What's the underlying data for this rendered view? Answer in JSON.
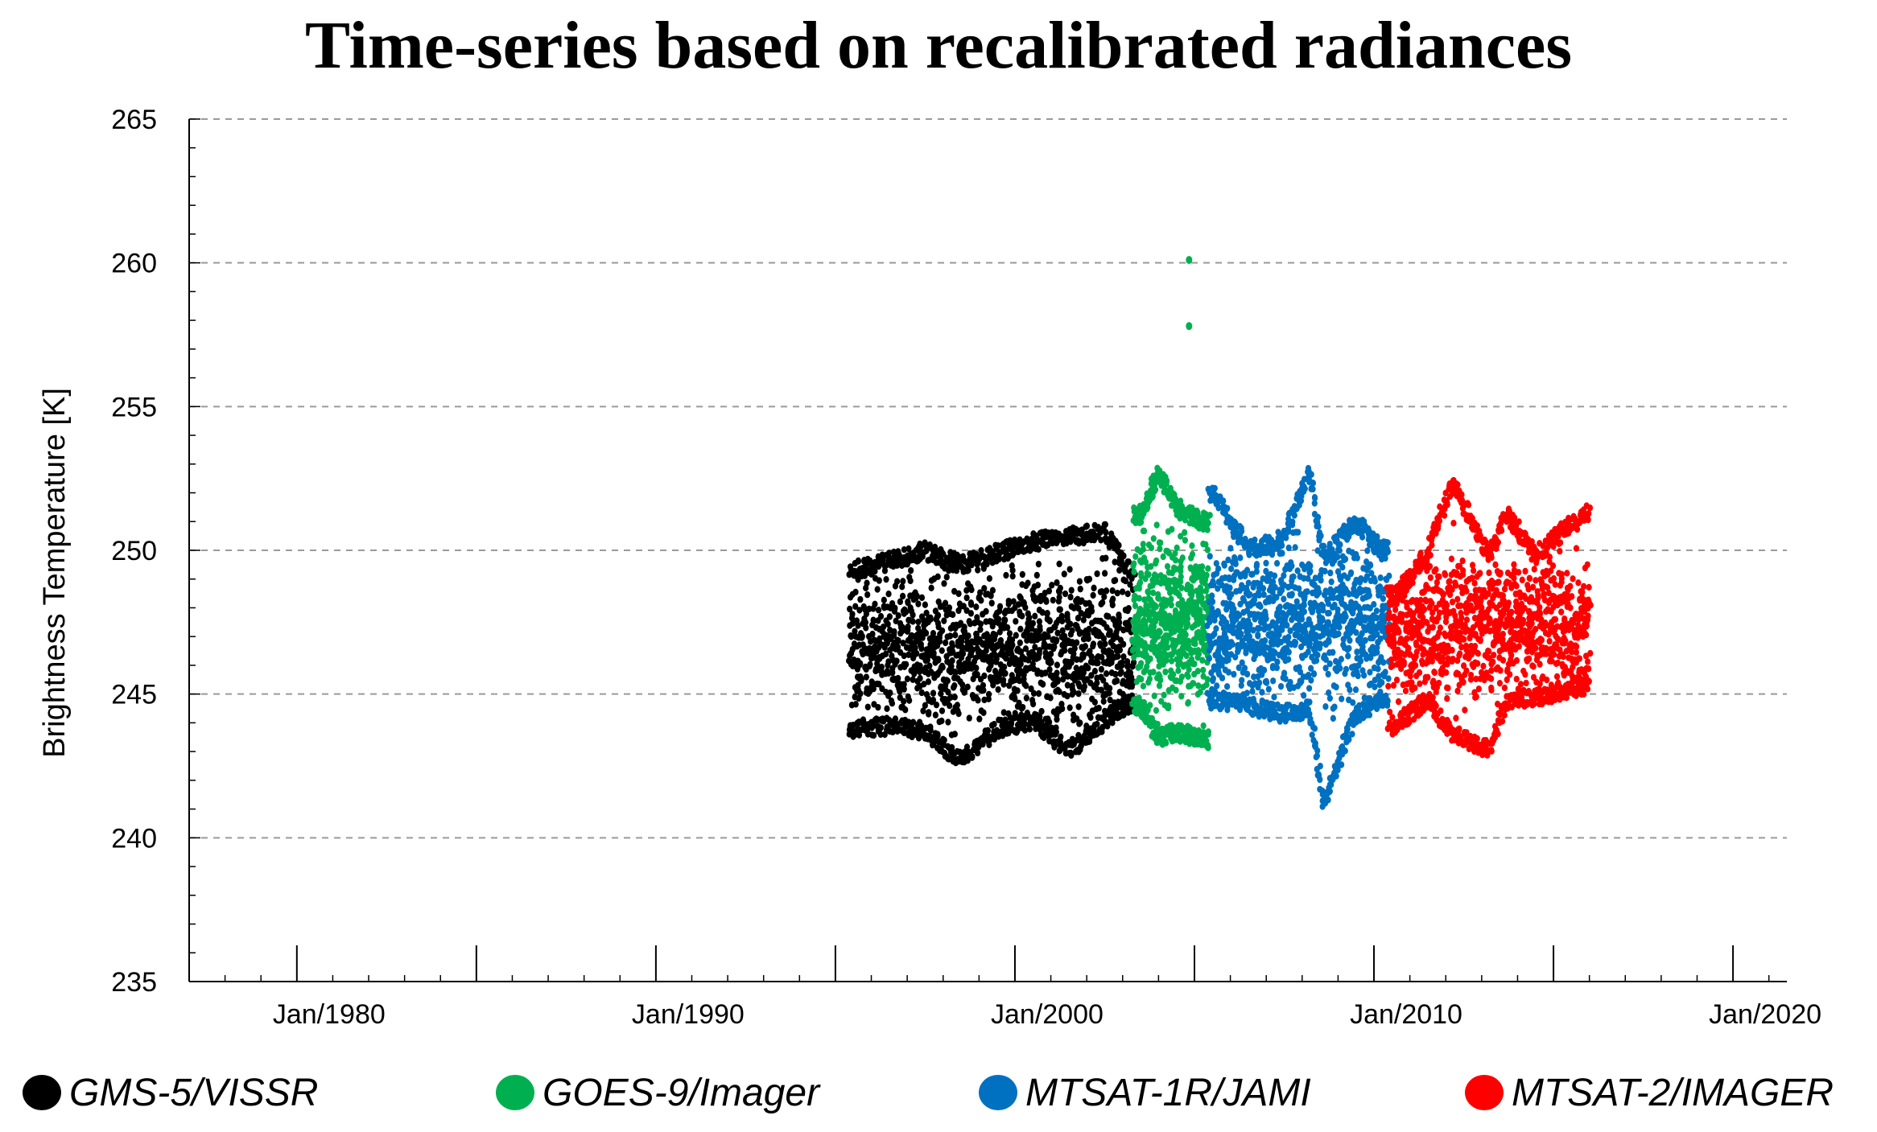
{
  "chart_data": {
    "type": "scatter",
    "title": "Time-series based on recalibrated radiances",
    "xlabel": "",
    "ylabel": "Brightness Temperature [K]",
    "xlim": [
      1977,
      2021.5
    ],
    "ylim": [
      235,
      265
    ],
    "grid": "horizontal-dashed",
    "x_tick_labels": [
      "Jan/1980",
      "Jan/1990",
      "Jan/2000",
      "Jan/2010",
      "Jan/2020"
    ],
    "x_tick_values": [
      1980,
      1990,
      2000,
      2010,
      2020
    ],
    "y_tick_values": [
      235,
      240,
      245,
      250,
      255,
      260,
      265
    ],
    "y_tick_labels": [
      "235",
      "240",
      "245",
      "250",
      "255",
      "260",
      "265"
    ],
    "legend_position": "bottom",
    "series": [
      {
        "name": "GMS-5/VISSR",
        "color": "#000000",
        "x_range": [
          1995.4,
          2003.3
        ],
        "mean": 246.6,
        "spread": 1.5,
        "envelope": [
          [
            1995.5,
            243.5,
            249.6
          ],
          [
            1996.5,
            243.6,
            249.9
          ],
          [
            1997.5,
            243.4,
            250.3
          ],
          [
            1998.5,
            242.4,
            249.8
          ],
          [
            1999.5,
            243.5,
            250.2
          ],
          [
            2000.5,
            243.8,
            250.6
          ],
          [
            2001.5,
            242.7,
            250.8
          ],
          [
            2002.5,
            243.8,
            250.9
          ],
          [
            2003.2,
            244.4,
            249.6
          ]
        ],
        "count": 430
      },
      {
        "name": "GOES-9/Imager",
        "color": "#00b050",
        "x_range": [
          2003.3,
          2005.4
        ],
        "mean": 247.6,
        "spread": 1.7,
        "envelope": [
          [
            2003.5,
            244.3,
            251.5
          ],
          [
            2004.0,
            243.2,
            253.0
          ],
          [
            2004.5,
            243.4,
            251.8
          ],
          [
            2005.2,
            243.1,
            251.3
          ]
        ],
        "outliers": [
          [
            2004.85,
            260.1
          ],
          [
            2004.85,
            257.8
          ]
        ],
        "count": 190
      },
      {
        "name": "MTSAT-1R/JAMI",
        "color": "#0070c0",
        "x_range": [
          2005.4,
          2010.4
        ],
        "mean": 247.5,
        "spread": 1.5,
        "envelope": [
          [
            2005.6,
            244.5,
            252.2
          ],
          [
            2006.5,
            244.3,
            250.3
          ],
          [
            2007.5,
            244.0,
            250.7
          ],
          [
            2008.2,
            244.2,
            253.0
          ],
          [
            2008.6,
            241.0,
            250.0
          ],
          [
            2009.5,
            244.0,
            251.3
          ],
          [
            2010.2,
            244.5,
            250.3
          ]
        ],
        "count": 320
      },
      {
        "name": "MTSAT-2/IMAGER",
        "color": "#ff0000",
        "x_range": [
          2010.4,
          2016.0
        ],
        "mean": 247.3,
        "spread": 1.4,
        "envelope": [
          [
            2010.6,
            243.6,
            248.7
          ],
          [
            2011.5,
            244.5,
            250.2
          ],
          [
            2012.2,
            243.3,
            252.7
          ],
          [
            2013.2,
            242.8,
            250.0
          ],
          [
            2013.7,
            244.5,
            251.6
          ],
          [
            2014.5,
            244.6,
            250.1
          ],
          [
            2015.8,
            245.0,
            251.6
          ]
        ],
        "count": 340
      }
    ]
  }
}
